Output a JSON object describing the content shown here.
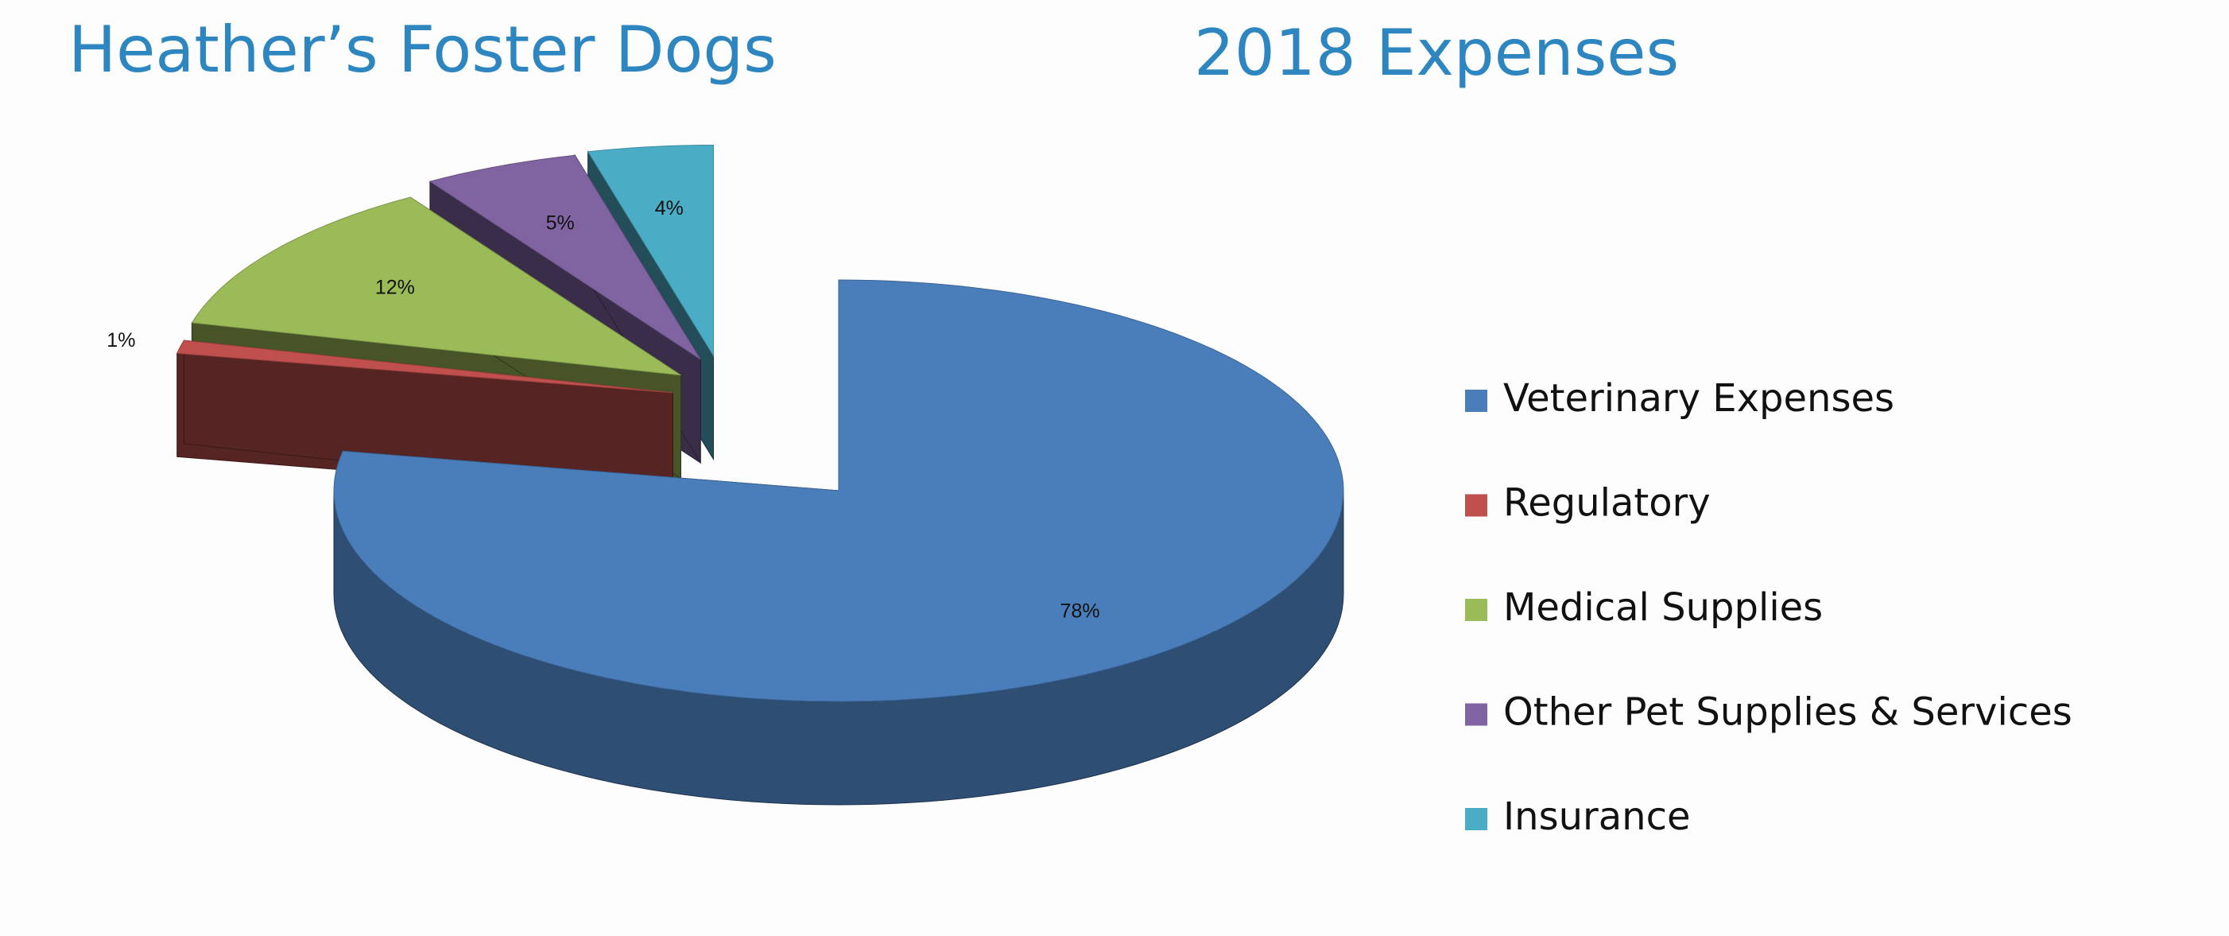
{
  "chart_data": {
    "type": "pie",
    "title": "Heather’s Foster Dogs",
    "subtitle": "2018 Expenses",
    "categories": [
      "Veterinary Expenses",
      "Regulatory",
      "Medical Supplies",
      "Other Pet Supplies & Services",
      "Insurance"
    ],
    "values": [
      78,
      1,
      12,
      5,
      4
    ],
    "value_labels": [
      "78%",
      "1%",
      "12%",
      "5%",
      "4%"
    ],
    "colors": [
      "#4a7ebb",
      "#c0504d",
      "#9bbb59",
      "#8064a2",
      "#4bacc6"
    ],
    "legend": "right"
  }
}
